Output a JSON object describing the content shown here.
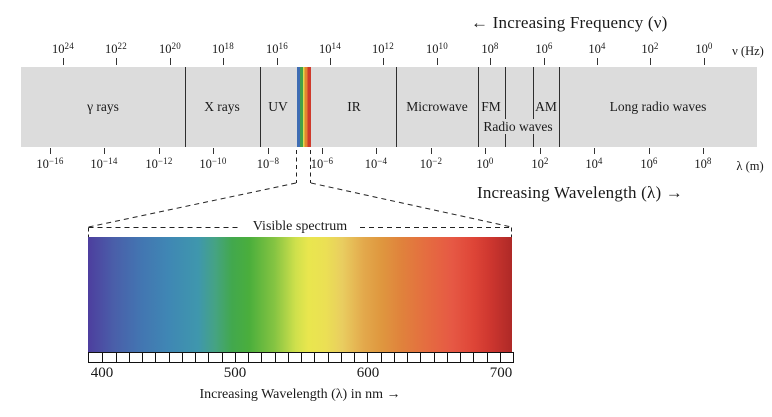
{
  "header": {
    "frequency_direction": "← Increasing Frequency (ν)",
    "frequency_unit": "ν (Hz)"
  },
  "freq_axis": {
    "base": "10",
    "exponents": [
      "24",
      "22",
      "20",
      "18",
      "16",
      "14",
      "12",
      "10",
      "8",
      "6",
      "4",
      "2",
      "0"
    ]
  },
  "wavelength_axis": {
    "base": "10",
    "exponents": [
      "−16",
      "−14",
      "−12",
      "−10",
      "−8",
      "−6",
      "−4",
      "−2",
      "0",
      "2",
      "4",
      "6",
      "8"
    ],
    "unit": "λ (m)",
    "direction": "Increasing Wavelength (λ) →"
  },
  "regions": [
    {
      "label": "γ rays"
    },
    {
      "label": "X rays"
    },
    {
      "label": "UV"
    },
    {
      "label": "IR"
    },
    {
      "label": "Microwave"
    },
    {
      "label": "FM"
    },
    {
      "label": "AM"
    },
    {
      "label": "Long radio waves"
    },
    {
      "label": "Radio waves"
    }
  ],
  "visible_spectrum": {
    "title": "Visible spectrum",
    "tick_labels": [
      "400",
      "500",
      "600",
      "700"
    ],
    "caption": "Increasing Wavelength (λ) in nm →"
  },
  "colors": {
    "band_gray": "#dcdcdc",
    "line_dark": "#222222",
    "spectrum_stops": [
      {
        "c": "#4d3e9e",
        "p": 0
      },
      {
        "c": "#4a5ea9",
        "p": 6
      },
      {
        "c": "#4374b1",
        "p": 12
      },
      {
        "c": "#3f87b4",
        "p": 19
      },
      {
        "c": "#3f97ad",
        "p": 26
      },
      {
        "c": "#45a383",
        "p": 30
      },
      {
        "c": "#42a84d",
        "p": 34
      },
      {
        "c": "#4aae3c",
        "p": 38
      },
      {
        "c": "#85c442",
        "p": 44
      },
      {
        "c": "#cfe04c",
        "p": 49
      },
      {
        "c": "#e9e64e",
        "p": 52
      },
      {
        "c": "#ebe054",
        "p": 56
      },
      {
        "c": "#e9cd60",
        "p": 60
      },
      {
        "c": "#e3a94c",
        "p": 65
      },
      {
        "c": "#df983f",
        "p": 69
      },
      {
        "c": "#e0823c",
        "p": 74
      },
      {
        "c": "#e56c40",
        "p": 80
      },
      {
        "c": "#e65844",
        "p": 86
      },
      {
        "c": "#de4537",
        "p": 91
      },
      {
        "c": "#cd362f",
        "p": 95
      },
      {
        "c": "#ae2927",
        "p": 100
      }
    ],
    "mini_strip_stops": [
      {
        "c": "#3f6db3",
        "from": 0,
        "to": 22
      },
      {
        "c": "#44a04a",
        "from": 22,
        "to": 42
      },
      {
        "c": "#ded94e",
        "from": 42,
        "to": 55
      },
      {
        "c": "#e2862f",
        "from": 55,
        "to": 76
      },
      {
        "c": "#cf3a2c",
        "from": 76,
        "to": 100
      }
    ]
  }
}
